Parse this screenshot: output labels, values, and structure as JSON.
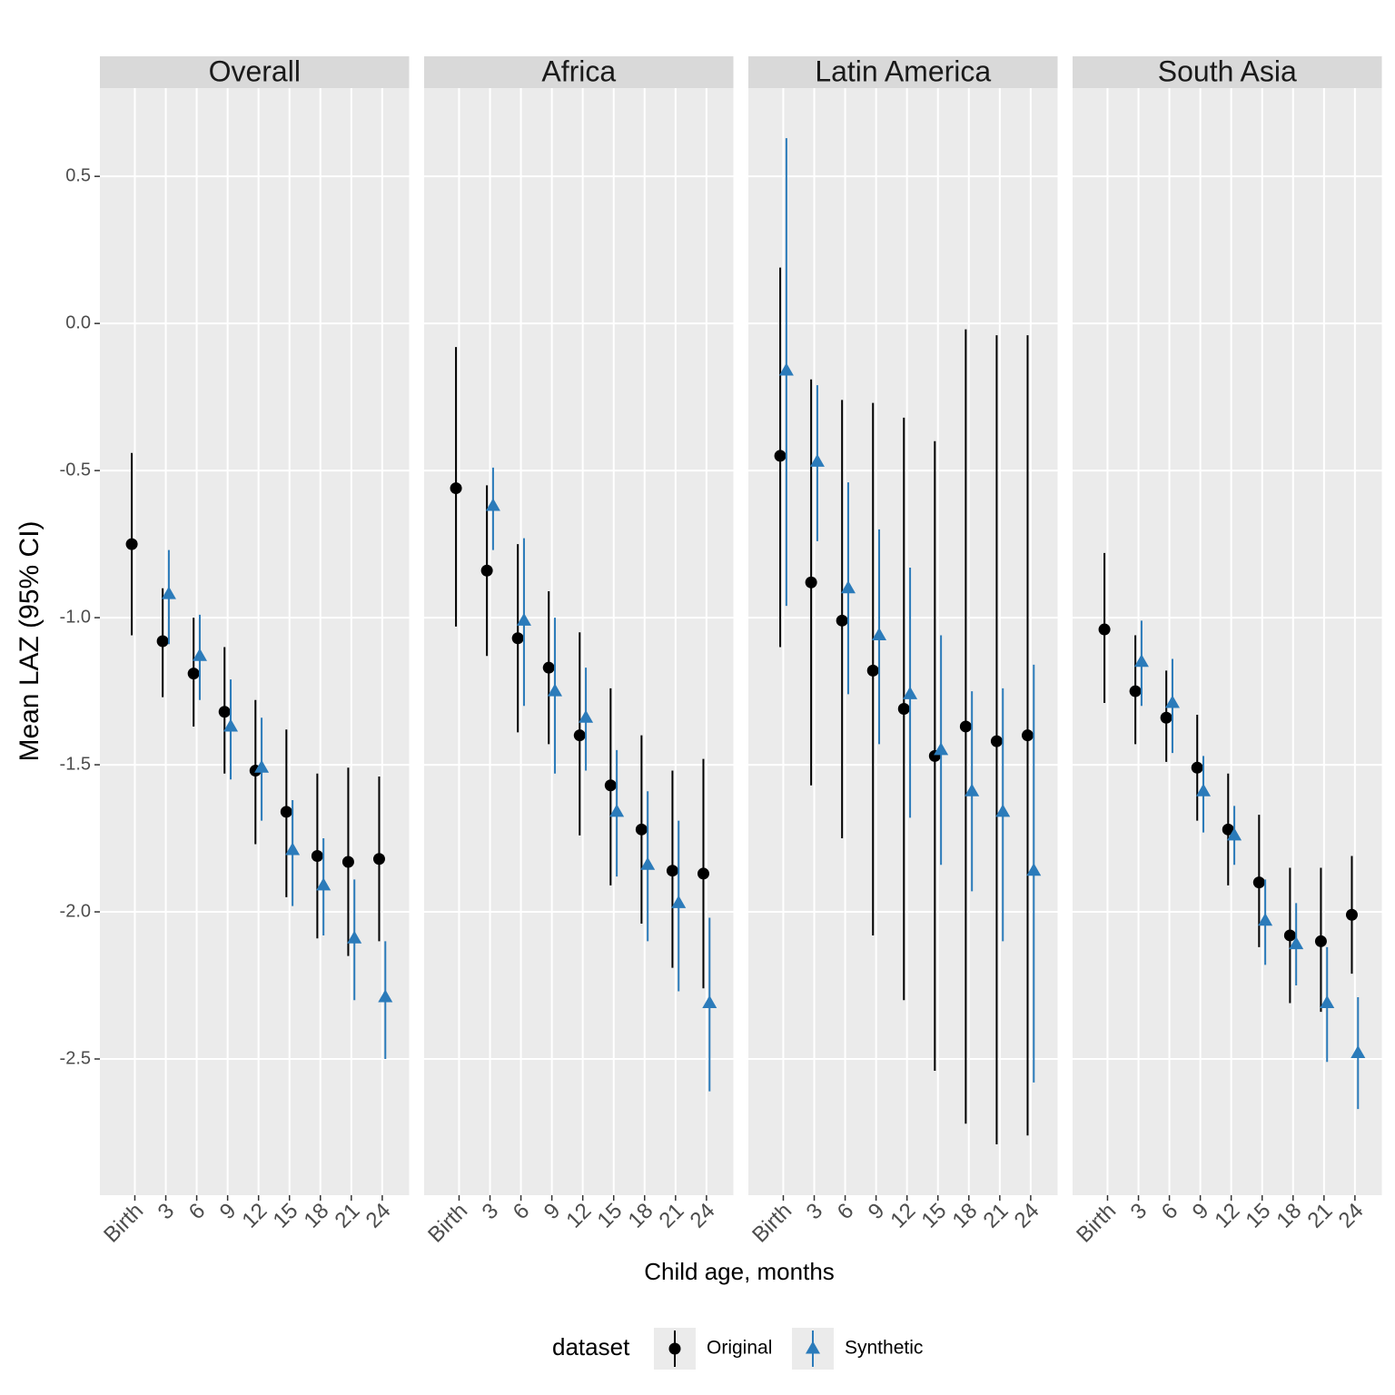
{
  "chart_data": {
    "type": "errorbar",
    "ylabel": "Mean LAZ (95% CI)",
    "xlabel": "Child age, months",
    "legend_title": "dataset",
    "categories": [
      "Birth",
      "3",
      "6",
      "9",
      "12",
      "15",
      "18",
      "21",
      "24"
    ],
    "ylim": [
      -2.963,
      0.8
    ],
    "yticks": [
      0.5,
      {
        "value": 0,
        "label": "0.0"
      },
      -0.5,
      {
        "value": -1,
        "label": "-1.0"
      },
      -1.5,
      {
        "value": -2,
        "label": "-2.0"
      },
      -2.5
    ],
    "grid": true,
    "series": [
      {
        "name": "Original",
        "color": "#000000",
        "shape": "circle"
      },
      {
        "name": "Synthetic",
        "color": "#2b7bba",
        "shape": "triangle"
      }
    ],
    "facets": [
      {
        "title": "Overall",
        "series": [
          {
            "values": [
              -0.75,
              -1.08,
              -1.19,
              -1.32,
              -1.52,
              -1.66,
              -1.81,
              -1.83,
              -1.82
            ],
            "lower": [
              -1.06,
              -1.27,
              -1.37,
              -1.53,
              -1.77,
              -1.95,
              -2.09,
              -2.15,
              -2.1
            ],
            "upper": [
              -0.44,
              -0.9,
              -1.0,
              -1.1,
              -1.28,
              -1.38,
              -1.53,
              -1.51,
              -1.54
            ]
          },
          {
            "values": [
              null,
              -0.92,
              -1.13,
              -1.37,
              -1.51,
              -1.79,
              -1.91,
              -2.09,
              -2.29
            ],
            "lower": [
              null,
              -1.09,
              -1.28,
              -1.55,
              -1.69,
              -1.98,
              -2.08,
              -2.3,
              -2.5
            ],
            "upper": [
              null,
              -0.77,
              -0.99,
              -1.21,
              -1.34,
              -1.62,
              -1.75,
              -1.89,
              -2.1
            ]
          }
        ]
      },
      {
        "title": "Africa",
        "series": [
          {
            "values": [
              -0.56,
              -0.84,
              -1.07,
              -1.17,
              -1.4,
              -1.57,
              -1.72,
              -1.86,
              -1.87
            ],
            "lower": [
              -1.03,
              -1.13,
              -1.39,
              -1.43,
              -1.74,
              -1.91,
              -2.04,
              -2.19,
              -2.26
            ],
            "upper": [
              -0.08,
              -0.55,
              -0.75,
              -0.91,
              -1.05,
              -1.24,
              -1.4,
              -1.52,
              -1.48
            ]
          },
          {
            "values": [
              null,
              -0.62,
              -1.01,
              -1.25,
              -1.34,
              -1.66,
              -1.84,
              -1.97,
              -2.31
            ],
            "lower": [
              null,
              -0.77,
              -1.3,
              -1.53,
              -1.52,
              -1.88,
              -2.1,
              -2.27,
              -2.61
            ],
            "upper": [
              null,
              -0.49,
              -0.73,
              -1.0,
              -1.17,
              -1.45,
              -1.59,
              -1.69,
              -2.02
            ]
          }
        ]
      },
      {
        "title": "Latin America",
        "series": [
          {
            "values": [
              -0.45,
              -0.88,
              -1.01,
              -1.18,
              -1.31,
              -1.47,
              -1.37,
              -1.42,
              -1.4
            ],
            "lower": [
              -1.1,
              -1.57,
              -1.75,
              -2.08,
              -2.3,
              -2.54,
              -2.72,
              -2.79,
              -2.76
            ],
            "upper": [
              0.19,
              -0.19,
              -0.26,
              -0.27,
              -0.32,
              -0.4,
              -0.02,
              -0.04,
              -0.04
            ]
          },
          {
            "values": [
              -0.16,
              -0.47,
              -0.9,
              -1.06,
              -1.26,
              -1.45,
              -1.59,
              -1.66,
              -1.86
            ],
            "lower": [
              -0.96,
              -0.74,
              -1.26,
              -1.43,
              -1.68,
              -1.84,
              -1.93,
              -2.1,
              -2.58
            ],
            "upper": [
              0.63,
              -0.21,
              -0.54,
              -0.7,
              -0.83,
              -1.06,
              -1.25,
              -1.24,
              -1.16
            ]
          }
        ]
      },
      {
        "title": "South Asia",
        "series": [
          {
            "values": [
              -1.04,
              -1.25,
              -1.34,
              -1.51,
              -1.72,
              -1.9,
              -2.08,
              -2.1,
              -2.01
            ],
            "lower": [
              -1.29,
              -1.43,
              -1.49,
              -1.69,
              -1.91,
              -2.12,
              -2.31,
              -2.34,
              -2.21
            ],
            "upper": [
              -0.78,
              -1.06,
              -1.18,
              -1.33,
              -1.53,
              -1.67,
              -1.85,
              -1.85,
              -1.81
            ]
          },
          {
            "values": [
              null,
              -1.15,
              -1.29,
              -1.59,
              -1.74,
              -2.03,
              -2.11,
              -2.31,
              -2.48
            ],
            "lower": [
              null,
              -1.3,
              -1.46,
              -1.73,
              -1.84,
              -2.18,
              -2.25,
              -2.51,
              -2.67
            ],
            "upper": [
              null,
              -1.01,
              -1.14,
              -1.47,
              -1.64,
              -1.89,
              -1.97,
              -2.12,
              -2.29
            ]
          }
        ]
      }
    ]
  }
}
